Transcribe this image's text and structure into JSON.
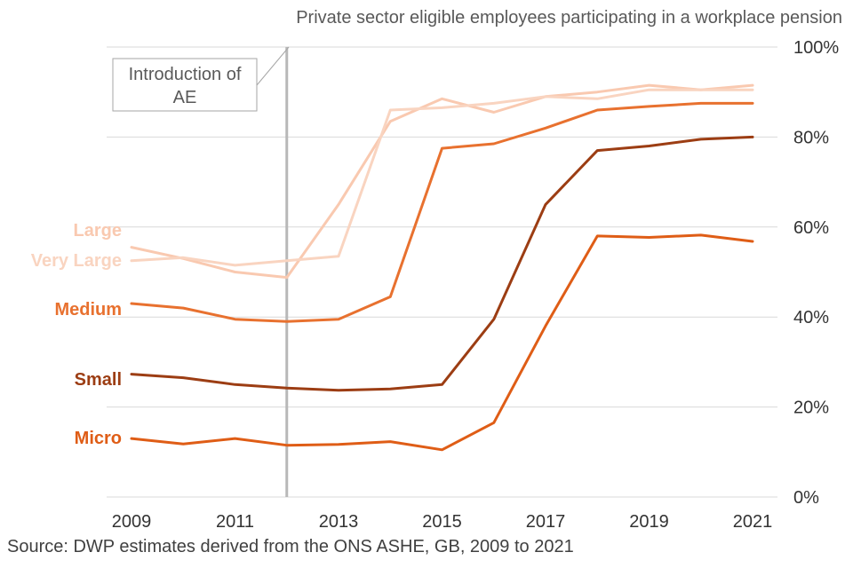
{
  "chart_data": {
    "type": "line",
    "title": "Private sector eligible employees participating in a workplace pension",
    "x": [
      2009,
      2010,
      2011,
      2012,
      2013,
      2014,
      2015,
      2016,
      2017,
      2018,
      2019,
      2020,
      2021
    ],
    "x_tick_labels": [
      "2009",
      "2011",
      "2013",
      "2015",
      "2017",
      "2019",
      "2021"
    ],
    "x_tick_values": [
      2009,
      2011,
      2013,
      2015,
      2017,
      2019,
      2021
    ],
    "ylim": [
      0,
      100
    ],
    "y_ticks": [
      0,
      20,
      40,
      60,
      80,
      100
    ],
    "y_tick_labels": [
      "0%",
      "20%",
      "40%",
      "60%",
      "80%",
      "100%"
    ],
    "grid": true,
    "series": [
      {
        "name": "Large",
        "color": "#f9c9b0",
        "values": [
          55.5,
          53,
          50,
          48.8,
          65,
          83.5,
          88.5,
          85.5,
          89,
          90,
          91.5,
          90.5,
          91.5
        ]
      },
      {
        "name": "Very Large",
        "color": "#f9d4c0",
        "values": [
          52.5,
          53.2,
          51.5,
          52.5,
          53.5,
          86,
          86.5,
          87.5,
          89,
          88.5,
          90.5,
          90.5,
          90.5
        ]
      },
      {
        "name": "Medium",
        "color": "#e8712f",
        "values": [
          43,
          42,
          39.5,
          39,
          39.5,
          44.5,
          77.5,
          78.5,
          82,
          86,
          86.8,
          87.5,
          87.5
        ]
      },
      {
        "name": "Small",
        "color": "#9c3d13",
        "values": [
          27.3,
          26.5,
          25,
          24.2,
          23.7,
          24,
          25,
          39.5,
          65,
          77,
          78,
          79.5,
          80
        ]
      },
      {
        "name": "Micro",
        "color": "#df5d16",
        "values": [
          13,
          11.8,
          13,
          11.5,
          11.7,
          12.3,
          10.5,
          16.5,
          38,
          58,
          57.7,
          58.2,
          56.8
        ]
      }
    ],
    "annotation": {
      "text": "Introduction of AE",
      "lines": [
        "Introduction of",
        "AE"
      ],
      "x": 2012
    }
  },
  "source": "Source: DWP estimates derived from the ONS ASHE, GB, 2009 to 2021"
}
